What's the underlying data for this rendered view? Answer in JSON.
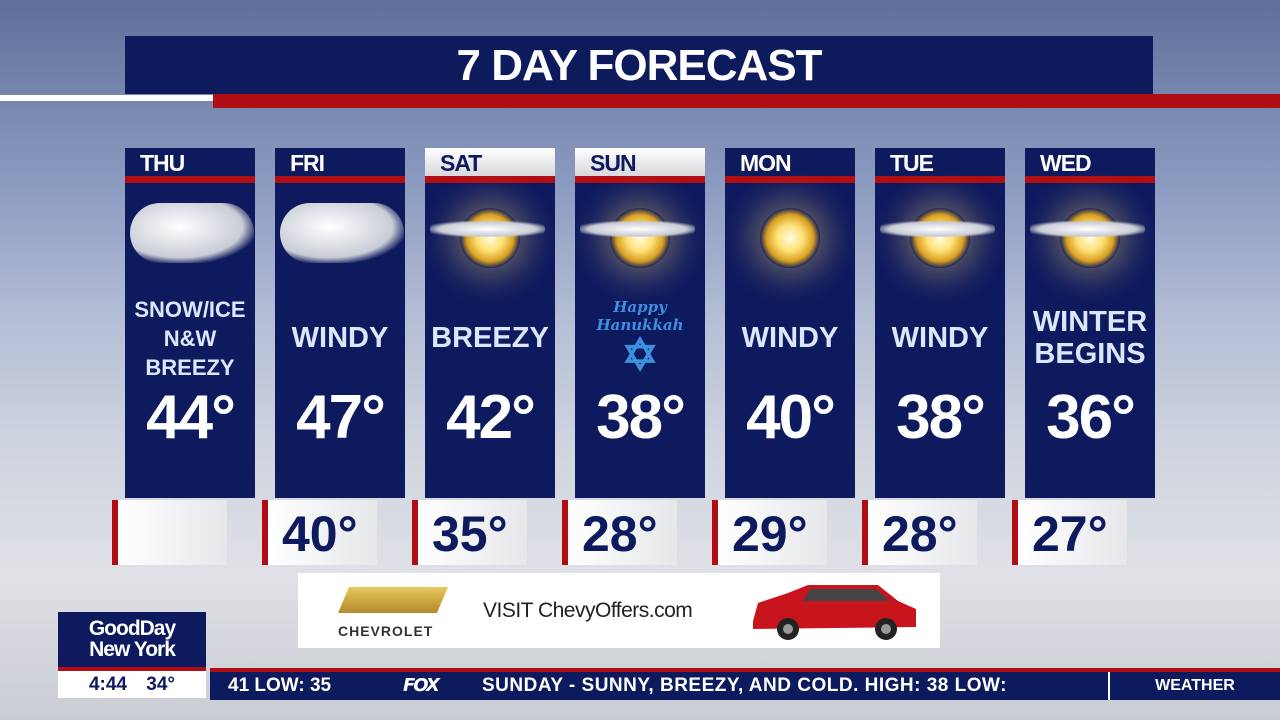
{
  "title": "7 DAY FORECAST",
  "days": [
    {
      "day": "THU",
      "desc": [
        "SNOW/ICE",
        "N&W",
        "BREEZY"
      ],
      "icon": "cloud-snow-icon",
      "high": "44°",
      "low": ""
    },
    {
      "day": "FRI",
      "desc": [
        "WINDY"
      ],
      "icon": "cloud-rain-icon",
      "high": "47°",
      "low": "40°"
    },
    {
      "day": "SAT",
      "desc": [
        "BREEZY"
      ],
      "icon": "partly-sunny-icon",
      "high": "42°",
      "low": "35°"
    },
    {
      "day": "SUN",
      "desc": [],
      "note": [
        "Happy",
        "Hanukkah"
      ],
      "icon": "star-of-david-icon",
      "high": "38°",
      "low": "28°"
    },
    {
      "day": "MON",
      "desc": [
        "WINDY"
      ],
      "icon": "sun-icon",
      "high": "40°",
      "low": "29°"
    },
    {
      "day": "TUE",
      "desc": [
        "WINDY"
      ],
      "icon": "partly-sunny-icon",
      "high": "38°",
      "low": "28°"
    },
    {
      "day": "WED",
      "desc": [
        "WINTER",
        "BEGINS"
      ],
      "icon": "partly-sunny-icon",
      "high": "36°",
      "low": "27°"
    }
  ],
  "ad": {
    "brand": "CHEVROLET",
    "text": "VISIT ChevyOffers.com"
  },
  "logo": {
    "line1": "GoodDay",
    "line2": "New York",
    "time": "4:44",
    "temp": "34°"
  },
  "ticker": {
    "left": "41 LOW:  35",
    "network": "FOX",
    "text": "SUNDAY - SUNNY, BREEZY, AND COLD. HIGH:  38 LOW:",
    "section": "WEATHER"
  },
  "colors": {
    "navy": "#0e1a5e",
    "red": "#b10d14"
  }
}
